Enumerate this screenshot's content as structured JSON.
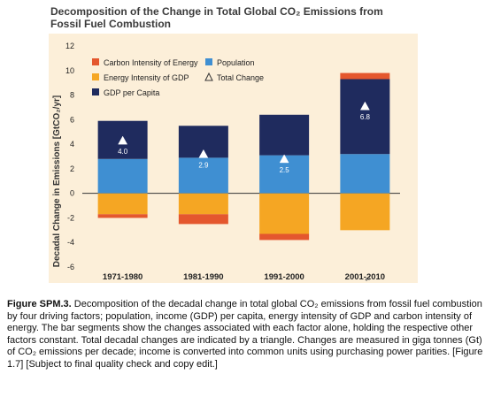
{
  "chart_data": {
    "type": "bar",
    "stacked": true,
    "title_line1": "Decomposition of the Change in Total Global CO₂ Emissions from",
    "title_line2": "Fossil Fuel Combustion",
    "ylabel": "Decadal Change in Emissions [GtCO₂/yr]",
    "ylim": [
      -6,
      12
    ],
    "yticks": [
      "-6",
      "-4",
      "-2",
      "0",
      "2",
      "4",
      "6",
      "8",
      "10",
      "12"
    ],
    "categories": [
      "1971-1980",
      "1981-1990",
      "1991-2000",
      "2001-2010"
    ],
    "series": [
      {
        "name": "Population",
        "color": "#3f8fd2",
        "values": [
          2.8,
          2.9,
          3.1,
          3.2
        ]
      },
      {
        "name": "GDP per Capita",
        "color": "#1f2b5e",
        "values": [
          3.1,
          2.6,
          3.3,
          6.1
        ]
      },
      {
        "name": "Energy Intensity of GDP",
        "color": "#f5a623",
        "values": [
          -1.7,
          -1.7,
          -3.3,
          -3.0
        ]
      },
      {
        "name": "Carbon Intensity of Energy",
        "color": "#e4572e",
        "values": [
          -0.3,
          -0.8,
          -0.5,
          0.5
        ]
      }
    ],
    "total_change": {
      "name": "Total Change",
      "values": [
        4.0,
        2.9,
        2.5,
        6.8
      ],
      "labels": [
        "4.0",
        "2.9",
        "2.5",
        "6.8"
      ]
    },
    "legend": {
      "placement": "top-left",
      "items": [
        {
          "label": "Carbon Intensity of Energy",
          "color": "#e4572e",
          "marker": "square"
        },
        {
          "label": "Population",
          "color": "#3f8fd2",
          "marker": "square"
        },
        {
          "label": "Energy Intensity of GDP",
          "color": "#f5a623",
          "marker": "square"
        },
        {
          "label": "Total Change",
          "color": "#333333",
          "marker": "triangle-outline"
        },
        {
          "label": "GDP per Capita",
          "color": "#1f2b5e",
          "marker": "square"
        }
      ]
    },
    "grid": false,
    "zero_line": true,
    "background": "#fcefd9"
  },
  "caption": {
    "label": "Figure SPM.3.",
    "text": " Decomposition of the decadal change in total global CO₂ emissions from fossil fuel combustion by four driving factors; population, income (GDP) per capita, energy intensity of GDP and carbon intensity of energy. The bar segments show the changes associated with each factor alone, holding the respective other factors constant. Total decadal changes are indicated by a triangle. Changes are measured in giga tonnes (Gt) of CO₂ emissions per decade; income is converted into common units using purchasing power parities. [Figure 1.7] [Subject to final quality check and copy edit.]"
  },
  "return_mark": "↵"
}
